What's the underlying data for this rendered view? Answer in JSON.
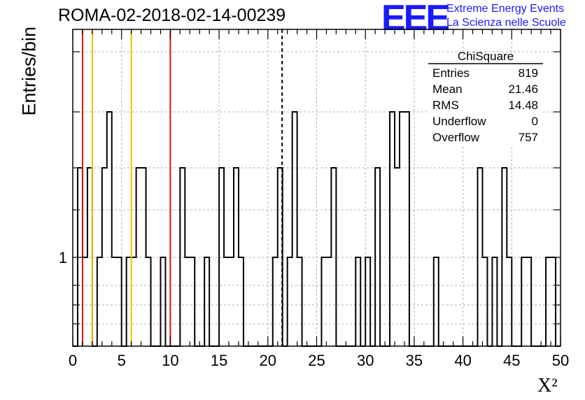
{
  "chart_data": {
    "type": "bar",
    "title": "ROMA-02-2018-02-14-00239",
    "xlabel": "X²",
    "ylabel": "Entries/bin",
    "xlim": [
      0,
      50
    ],
    "log_y": true,
    "y_tick_label": "1",
    "x_ticks": [
      "0",
      "5",
      "10",
      "15",
      "20",
      "25",
      "30",
      "35",
      "40",
      "45",
      "50"
    ],
    "grid": true,
    "bin_width": 0.5,
    "bins": [
      {
        "x": 0.5,
        "y": 2
      },
      {
        "x": 1.0,
        "y": 1
      },
      {
        "x": 1.5,
        "y": 2
      },
      {
        "x": 2.5,
        "y": 1
      },
      {
        "x": 3.0,
        "y": 2
      },
      {
        "x": 3.5,
        "y": 3
      },
      {
        "x": 4.0,
        "y": 1
      },
      {
        "x": 4.5,
        "y": 1
      },
      {
        "x": 5.0,
        "y": 0
      },
      {
        "x": 5.5,
        "y": 1
      },
      {
        "x": 6.0,
        "y": 1
      },
      {
        "x": 6.5,
        "y": 2
      },
      {
        "x": 7.0,
        "y": 2
      },
      {
        "x": 7.5,
        "y": 1
      },
      {
        "x": 8.0,
        "y": 0
      },
      {
        "x": 9.0,
        "y": 1
      },
      {
        "x": 11.0,
        "y": 2
      },
      {
        "x": 11.5,
        "y": 1
      },
      {
        "x": 12.0,
        "y": 1
      },
      {
        "x": 13.5,
        "y": 1
      },
      {
        "x": 15.0,
        "y": 2
      },
      {
        "x": 15.5,
        "y": 1
      },
      {
        "x": 16.0,
        "y": 1
      },
      {
        "x": 16.5,
        "y": 2
      },
      {
        "x": 17.0,
        "y": 1
      },
      {
        "x": 20.5,
        "y": 1
      },
      {
        "x": 21.0,
        "y": 2
      },
      {
        "x": 22.0,
        "y": 1
      },
      {
        "x": 22.5,
        "y": 3
      },
      {
        "x": 23.0,
        "y": 1
      },
      {
        "x": 25.5,
        "y": 1
      },
      {
        "x": 26.0,
        "y": 1
      },
      {
        "x": 26.5,
        "y": 2
      },
      {
        "x": 29.0,
        "y": 1
      },
      {
        "x": 30.0,
        "y": 1
      },
      {
        "x": 31.0,
        "y": 2
      },
      {
        "x": 32.5,
        "y": 3
      },
      {
        "x": 33.0,
        "y": 2
      },
      {
        "x": 33.5,
        "y": 3
      },
      {
        "x": 34.0,
        "y": 3
      },
      {
        "x": 37.0,
        "y": 1
      },
      {
        "x": 41.5,
        "y": 2
      },
      {
        "x": 42.0,
        "y": 1
      },
      {
        "x": 43.0,
        "y": 1
      },
      {
        "x": 44.0,
        "y": 2
      },
      {
        "x": 44.5,
        "y": 1
      },
      {
        "x": 46.0,
        "y": 1
      },
      {
        "x": 46.5,
        "y": 1
      },
      {
        "x": 48.5,
        "y": 1
      },
      {
        "x": 49.0,
        "y": 1
      }
    ],
    "vertical_lines": [
      {
        "x": 1.0,
        "color": "#dd1111",
        "style": "solid"
      },
      {
        "x": 2.0,
        "color": "#f0c000",
        "style": "solid"
      },
      {
        "x": 6.0,
        "color": "#f0c000",
        "style": "solid"
      },
      {
        "x": 10.0,
        "color": "#dd1111",
        "style": "solid"
      },
      {
        "x": 21.46,
        "color": "#000000",
        "style": "dashed"
      }
    ]
  },
  "stats_box": {
    "title": "ChiSquare",
    "rows": [
      {
        "label": "Entries",
        "value": "819"
      },
      {
        "label": "Mean",
        "value": "21.46"
      },
      {
        "label": "RMS",
        "value": "14.48"
      },
      {
        "label": "Underflow",
        "value": "0"
      },
      {
        "label": "Overflow",
        "value": "757"
      }
    ]
  },
  "logo": {
    "mark": "EEE",
    "line1": "Extreme Energy Events",
    "line2": "La Scienza nelle Scuole",
    "color": "#1a1aff"
  }
}
